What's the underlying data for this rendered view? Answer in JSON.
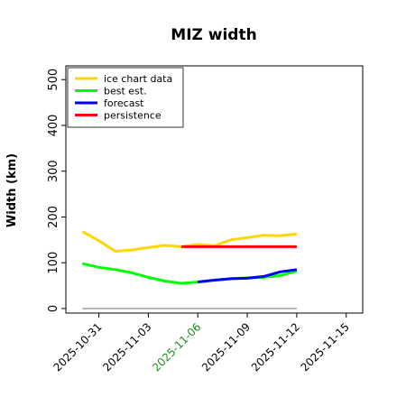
{
  "chart_data": {
    "type": "line",
    "title": "MIZ width",
    "xlabel": "",
    "ylabel": "Width (km)",
    "ylim": [
      -10,
      530
    ],
    "xlim": [
      "2025-10-29",
      "2025-11-16"
    ],
    "yticks": [
      0,
      100,
      200,
      300,
      400,
      500
    ],
    "xticks": [
      {
        "date": "2025-10-31",
        "label": "2025-10-31",
        "color": "#000000"
      },
      {
        "date": "2025-11-03",
        "label": "2025-11-03",
        "color": "#000000"
      },
      {
        "date": "2025-11-06",
        "label": "2025-11-06",
        "color": "#228b22"
      },
      {
        "date": "2025-11-09",
        "label": "2025-11-09",
        "color": "#000000"
      },
      {
        "date": "2025-11-12",
        "label": "2025-11-12",
        "color": "#000000"
      },
      {
        "date": "2025-11-15",
        "label": "2025-11-15",
        "color": "#000000"
      }
    ],
    "legend_position": "top-left",
    "grid": false,
    "series": [
      {
        "name": "ice chart data",
        "color": "#ffd700",
        "x": [
          "2025-10-30",
          "2025-10-31",
          "2025-11-01",
          "2025-11-02",
          "2025-11-03",
          "2025-11-04",
          "2025-11-05",
          "2025-11-06",
          "2025-11-07",
          "2025-11-08",
          "2025-11-09",
          "2025-11-10",
          "2025-11-11",
          "2025-11-12"
        ],
        "y": [
          168,
          148,
          125,
          128,
          133,
          138,
          135,
          140,
          137,
          150,
          155,
          160,
          159,
          163
        ]
      },
      {
        "name": "best est.",
        "color": "#00ff00",
        "x": [
          "2025-10-30",
          "2025-10-31",
          "2025-11-01",
          "2025-11-02",
          "2025-11-03",
          "2025-11-04",
          "2025-11-05",
          "2025-11-06",
          "2025-11-07",
          "2025-11-08",
          "2025-11-09",
          "2025-11-10",
          "2025-11-11",
          "2025-11-12"
        ],
        "y": [
          98,
          90,
          85,
          78,
          68,
          60,
          55,
          58,
          62,
          65,
          67,
          68,
          72,
          82
        ]
      },
      {
        "name": "forecast",
        "color": "#0000ff",
        "x": [
          "2025-11-06",
          "2025-11-07",
          "2025-11-08",
          "2025-11-09",
          "2025-11-10",
          "2025-11-11",
          "2025-11-12"
        ],
        "y": [
          58,
          62,
          65,
          66,
          70,
          80,
          85
        ]
      },
      {
        "name": "persistence",
        "color": "#ff0000",
        "x": [
          "2025-11-05",
          "2025-11-06",
          "2025-11-07",
          "2025-11-08",
          "2025-11-09",
          "2025-11-10",
          "2025-11-11",
          "2025-11-12"
        ],
        "y": [
          135,
          135,
          135,
          135,
          135,
          135,
          135,
          135
        ]
      }
    ],
    "reference_line": {
      "y": 0,
      "x_start": "2025-10-30",
      "x_end": "2025-11-12",
      "color": "#808080"
    }
  }
}
